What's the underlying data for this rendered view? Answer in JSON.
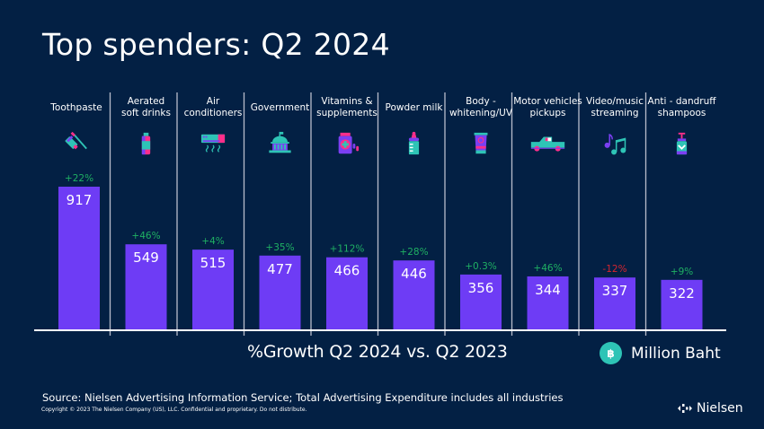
{
  "title": "Top spenders: Q2 2024",
  "chart_data": {
    "type": "bar",
    "title": "Top spenders: Q2 2024",
    "categories": [
      "Toothpaste",
      "Aerated soft drinks",
      "Air conditioners",
      "Government",
      "Vitamins & supplements",
      "Powder milk",
      "Body - whitening/UV",
      "Motor vehicles pickups",
      "Video/music streaming",
      "Anti - dandruff shampoos"
    ],
    "category_label_lines": [
      [
        "Toothpaste"
      ],
      [
        "Aerated",
        "soft drinks"
      ],
      [
        "Air",
        "conditioners"
      ],
      [
        "Government"
      ],
      [
        "Vitamins &",
        "supplements"
      ],
      [
        "Powder milk"
      ],
      [
        "Body -",
        "whitening/UV"
      ],
      [
        "Motor vehicles",
        "pickups"
      ],
      [
        "Video/music",
        "streaming"
      ],
      [
        "Anti - dandruff",
        "shampoos"
      ]
    ],
    "icons": [
      "toothpaste-icon",
      "soft-drink-bottle-icon",
      "air-conditioner-icon",
      "government-building-icon",
      "vitamin-bottle-icon",
      "baby-bottle-icon",
      "sunscreen-tube-icon",
      "pickup-truck-icon",
      "music-notes-icon",
      "shampoo-pump-icon"
    ],
    "values": [
      917,
      549,
      515,
      477,
      466,
      446,
      356,
      344,
      337,
      322
    ],
    "growth": [
      "+22%",
      "+46%",
      "+4%",
      "+35%",
      "+112%",
      "+28%",
      "+0.3%",
      "+46%",
      "-12%",
      "+9%"
    ],
    "growth_caption": "%Growth Q2 2024 vs. Q2 2023",
    "unit": "Million Baht",
    "ylim": [
      0,
      917
    ],
    "grid": false,
    "xlabel": "",
    "ylabel": ""
  },
  "colors": {
    "background": "#032044",
    "bar": "#6e3cf5",
    "growth_positive": "#1fb063",
    "growth_negative": "#d6252f",
    "accent_teal": "#2ec4b6",
    "accent_pink": "#ff2e8a",
    "accent_purple": "#7b3ff2"
  },
  "unit_icon": "baht-icon",
  "unit_icon_glyph": "฿",
  "footer": {
    "source": "Source: Nielsen Advertising Information Service; Total Advertising Expenditure includes all industries",
    "copyright": "Copyright © 2023 The Nielsen Company (US), LLC. Confidential and proprietary. Do not distribute.",
    "brand": "Nielsen"
  }
}
